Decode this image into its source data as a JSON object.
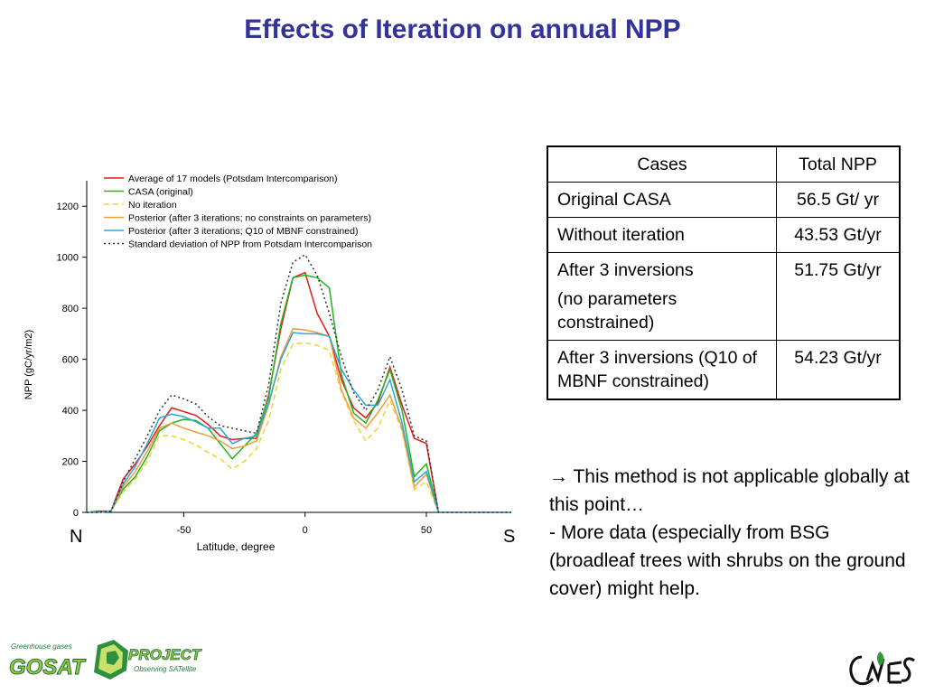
{
  "slide": {
    "title": "Effects of Iteration on annual NPP",
    "north_label": "N",
    "south_label": "S"
  },
  "table": {
    "headers": [
      "Cases",
      "Total NPP"
    ],
    "rows": [
      {
        "case": "Original CASA",
        "case_sub": "",
        "total": "56.5 Gt/ yr"
      },
      {
        "case": "Without iteration",
        "case_sub": "",
        "total": "43.53 Gt/yr"
      },
      {
        "case": "After 3 inversions",
        "case_sub": "(no parameters constrained)",
        "total": "51.75 Gt/yr"
      },
      {
        "case": "After 3 inversions (Q10 of MBNF constrained)",
        "case_sub": "",
        "total": "54.23 Gt/yr"
      }
    ]
  },
  "notes": {
    "line1": "→ This method is not applicable globally at this point…",
    "line2": "- More data (especially from BSG (broadleaf trees with shrubs on the ground cover) might help."
  },
  "logos": {
    "gosat_top": "Greenhouse gases",
    "gosat_main": "GOSAT",
    "gosat_project": "PROJECT",
    "gosat_sub": "Observing SATellite"
  },
  "chart_data": {
    "type": "line",
    "xlabel": "Latitude, degree",
    "ylabel": "NPP (gC/yr/m2)",
    "xlim": [
      -90,
      85
    ],
    "ylim": [
      0,
      1300
    ],
    "xticks": [
      -50,
      0,
      50
    ],
    "yticks": [
      0,
      200,
      400,
      600,
      800,
      1000,
      1200
    ],
    "grid": false,
    "legend_position": "top-left",
    "x": [
      -90,
      -85,
      -80,
      -75,
      -70,
      -65,
      -60,
      -55,
      -50,
      -45,
      -40,
      -35,
      -30,
      -25,
      -20,
      -15,
      -10,
      -5,
      0,
      5,
      10,
      15,
      20,
      25,
      30,
      35,
      40,
      45,
      50,
      55,
      60,
      65,
      70,
      75,
      80,
      85
    ],
    "series": [
      {
        "name": "Average of 17 models (Potsdam Intercomparison)",
        "color": "#e41a1c",
        "dash": "solid",
        "values": [
          0,
          5,
          5,
          130,
          190,
          260,
          340,
          410,
          395,
          380,
          345,
          300,
          285,
          290,
          290,
          460,
          720,
          920,
          940,
          780,
          690,
          520,
          410,
          370,
          430,
          570,
          420,
          290,
          270,
          0,
          0,
          0,
          0,
          0,
          0,
          0
        ]
      },
      {
        "name": "CASA (original)",
        "color": "#1fb51f",
        "dash": "solid",
        "values": [
          0,
          0,
          5,
          90,
          140,
          220,
          320,
          350,
          365,
          360,
          330,
          270,
          210,
          260,
          310,
          450,
          740,
          920,
          930,
          920,
          880,
          540,
          390,
          350,
          440,
          560,
          400,
          140,
          190,
          0,
          0,
          0,
          0,
          0,
          0,
          0
        ]
      },
      {
        "name": "No iteration",
        "color": "#e8d630",
        "dash": "dash",
        "values": [
          0,
          0,
          5,
          80,
          130,
          200,
          300,
          300,
          285,
          265,
          235,
          210,
          170,
          200,
          250,
          360,
          560,
          660,
          665,
          655,
          635,
          470,
          360,
          280,
          330,
          440,
          320,
          90,
          120,
          0,
          0,
          0,
          0,
          0,
          0,
          0
        ]
      },
      {
        "name": "Posterior (after 3 iterations; no constraints on parameters)",
        "color": "#f39a3b",
        "dash": "solid",
        "values": [
          0,
          0,
          5,
          100,
          160,
          240,
          330,
          350,
          330,
          315,
          300,
          280,
          250,
          260,
          280,
          420,
          610,
          720,
          715,
          705,
          690,
          480,
          370,
          330,
          390,
          460,
          330,
          100,
          150,
          0,
          0,
          0,
          0,
          0,
          0,
          0
        ]
      },
      {
        "name": "Posterior (after 3 iterations; Q10 of MBNF constrained)",
        "color": "#2aa6d8",
        "dash": "solid",
        "values": [
          0,
          0,
          5,
          110,
          180,
          270,
          370,
          385,
          375,
          355,
          330,
          330,
          270,
          290,
          300,
          430,
          600,
          705,
          700,
          700,
          690,
          560,
          480,
          420,
          420,
          520,
          350,
          120,
          160,
          0,
          0,
          0,
          0,
          0,
          0,
          0
        ]
      },
      {
        "name": "Standard deviation of NPP from Potsdam Intercomparison",
        "color": "#333333",
        "dash": "dot",
        "values": [
          0,
          0,
          5,
          120,
          210,
          300,
          400,
          460,
          445,
          425,
          375,
          340,
          330,
          320,
          310,
          500,
          820,
          980,
          1010,
          930,
          780,
          610,
          470,
          400,
          480,
          610,
          480,
          300,
          280,
          0,
          0,
          0,
          0,
          0,
          0,
          0
        ]
      }
    ]
  }
}
